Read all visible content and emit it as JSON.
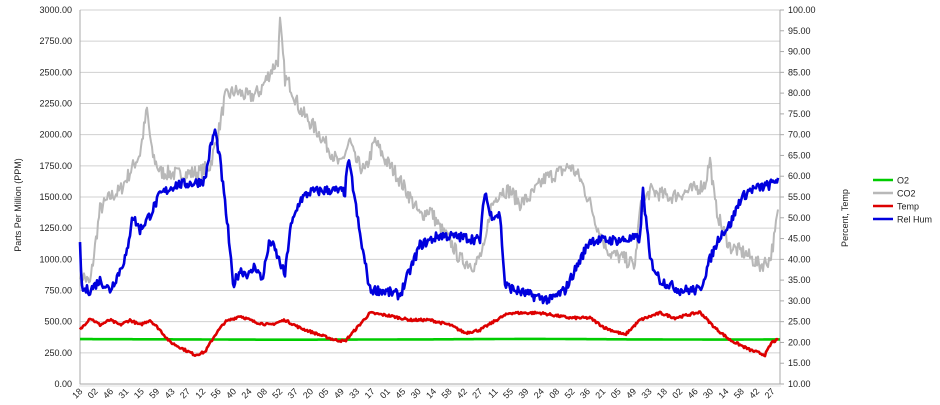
{
  "chart_data": {
    "type": "line",
    "title": "",
    "xlabel": "",
    "ylabel": "Parts Per Million (PPM)",
    "y2label": "Percent, Temp",
    "ylim": [
      0,
      3000
    ],
    "y2lim": [
      10,
      100
    ],
    "yticks": [
      "0.00",
      "250.00",
      "500.00",
      "750.00",
      "1000.00",
      "1250.00",
      "1500.00",
      "1750.00",
      "2000.00",
      "2250.00",
      "2500.00",
      "2750.00",
      "3000.00"
    ],
    "y2ticks": [
      "10.00",
      "15.00",
      "20.00",
      "25.00",
      "30.00",
      "35.00",
      "40.00",
      "45.00",
      "50.00",
      "55.00",
      "60.00",
      "65.00",
      "70.00",
      "75.00",
      "80.00",
      "85.00",
      "90.00",
      "95.00",
      "100.00"
    ],
    "xlim": [
      0,
      700
    ],
    "xticks": [
      "18",
      "02",
      "46",
      "31",
      "15",
      "59",
      "43",
      "27",
      "12",
      "56",
      "40",
      "24",
      "08",
      "52",
      "37",
      "20",
      "05",
      "49",
      "33",
      "17",
      "01",
      "45",
      "30",
      "14",
      "58",
      "42",
      "27",
      "11",
      "55",
      "39",
      "24",
      "08",
      "52",
      "36",
      "21",
      "05",
      "49",
      "33",
      "18",
      "02",
      "46",
      "30",
      "14",
      "58",
      "42",
      "27"
    ],
    "grid": true,
    "legend": "right",
    "series": [
      {
        "name": "O2",
        "axis": "left",
        "color": "#00cc00",
        "noise": 0,
        "points": [
          [
            0,
            360
          ],
          [
            100,
            358
          ],
          [
            200,
            355
          ],
          [
            350,
            358
          ],
          [
            450,
            362
          ],
          [
            550,
            358
          ],
          [
            650,
            356
          ],
          [
            700,
            358
          ]
        ]
      },
      {
        "name": "CO2",
        "axis": "left",
        "color": "#b8b8b8",
        "noise": 60,
        "points": [
          [
            0,
            900
          ],
          [
            10,
            800
          ],
          [
            15,
            1100
          ],
          [
            20,
            1400
          ],
          [
            30,
            1500
          ],
          [
            40,
            1550
          ],
          [
            50,
            1700
          ],
          [
            60,
            1850
          ],
          [
            67,
            2200
          ],
          [
            72,
            1850
          ],
          [
            80,
            1700
          ],
          [
            100,
            1680
          ],
          [
            120,
            1700
          ],
          [
            130,
            1750
          ],
          [
            138,
            2000
          ],
          [
            145,
            2300
          ],
          [
            155,
            2350
          ],
          [
            170,
            2300
          ],
          [
            180,
            2350
          ],
          [
            190,
            2500
          ],
          [
            198,
            2600
          ],
          [
            200,
            2900
          ],
          [
            205,
            2450
          ],
          [
            210,
            2400
          ],
          [
            220,
            2200
          ],
          [
            240,
            2000
          ],
          [
            260,
            1750
          ],
          [
            270,
            1950
          ],
          [
            275,
            1800
          ],
          [
            285,
            1700
          ],
          [
            295,
            1950
          ],
          [
            305,
            1800
          ],
          [
            315,
            1700
          ],
          [
            330,
            1500
          ],
          [
            340,
            1350
          ],
          [
            350,
            1400
          ],
          [
            360,
            1250
          ],
          [
            370,
            1150
          ],
          [
            380,
            1000
          ],
          [
            395,
            950
          ],
          [
            405,
            1100
          ],
          [
            410,
            1400
          ],
          [
            420,
            1550
          ],
          [
            430,
            1550
          ],
          [
            440,
            1450
          ],
          [
            450,
            1500
          ],
          [
            465,
            1650
          ],
          [
            480,
            1700
          ],
          [
            490,
            1750
          ],
          [
            500,
            1650
          ],
          [
            510,
            1450
          ],
          [
            520,
            1200
          ],
          [
            530,
            1050
          ],
          [
            545,
            1000
          ],
          [
            555,
            950
          ],
          [
            560,
            1400
          ],
          [
            570,
            1550
          ],
          [
            590,
            1500
          ],
          [
            610,
            1550
          ],
          [
            625,
            1600
          ],
          [
            630,
            1800
          ],
          [
            635,
            1450
          ],
          [
            640,
            1300
          ],
          [
            650,
            1100
          ],
          [
            665,
            1050
          ],
          [
            680,
            950
          ],
          [
            690,
            1000
          ],
          [
            695,
            1200
          ],
          [
            698,
            1400
          ]
        ]
      },
      {
        "name": "Temp",
        "axis": "right",
        "color": "#dd0000",
        "noise": 0.3,
        "points": [
          [
            0,
            23.0
          ],
          [
            10,
            25.9
          ],
          [
            20,
            24.2
          ],
          [
            30,
            25.4
          ],
          [
            40,
            24.2
          ],
          [
            50,
            25.4
          ],
          [
            60,
            24.2
          ],
          [
            70,
            25.4
          ],
          [
            80,
            23.0
          ],
          [
            90,
            20.1
          ],
          [
            105,
            18.2
          ],
          [
            115,
            17.0
          ],
          [
            125,
            17.7
          ],
          [
            135,
            21.8
          ],
          [
            145,
            24.9
          ],
          [
            160,
            26.4
          ],
          [
            175,
            24.9
          ],
          [
            190,
            24.2
          ],
          [
            205,
            25.4
          ],
          [
            220,
            23.5
          ],
          [
            240,
            21.8
          ],
          [
            255,
            20.6
          ],
          [
            265,
            20.3
          ],
          [
            275,
            23.0
          ],
          [
            290,
            27.1
          ],
          [
            310,
            26.4
          ],
          [
            330,
            25.4
          ],
          [
            350,
            25.4
          ],
          [
            370,
            24.2
          ],
          [
            385,
            22.3
          ],
          [
            400,
            23.0
          ],
          [
            420,
            25.9
          ],
          [
            430,
            27.1
          ],
          [
            460,
            27.1
          ],
          [
            490,
            25.9
          ],
          [
            510,
            25.9
          ],
          [
            525,
            23.5
          ],
          [
            545,
            21.8
          ],
          [
            560,
            25.4
          ],
          [
            580,
            27.1
          ],
          [
            595,
            25.9
          ],
          [
            620,
            27.3
          ],
          [
            635,
            23.5
          ],
          [
            650,
            20.6
          ],
          [
            670,
            18.2
          ],
          [
            685,
            17.0
          ],
          [
            692,
            20.1
          ],
          [
            698,
            20.6
          ]
        ]
      },
      {
        "name": "Rel Hum",
        "axis": "right",
        "color": "#0000dd",
        "noise": 1.2,
        "points": [
          [
            0,
            43.4
          ],
          [
            2,
            32.6
          ],
          [
            10,
            32.6
          ],
          [
            20,
            35.0
          ],
          [
            30,
            32.6
          ],
          [
            40,
            37.4
          ],
          [
            48,
            42.2
          ],
          [
            52,
            50.7
          ],
          [
            60,
            47.1
          ],
          [
            70,
            50.7
          ],
          [
            80,
            55.5
          ],
          [
            95,
            57.9
          ],
          [
            115,
            58.4
          ],
          [
            125,
            59.1
          ],
          [
            130,
            66.3
          ],
          [
            135,
            71.1
          ],
          [
            140,
            63.9
          ],
          [
            148,
            47.1
          ],
          [
            153,
            33.8
          ],
          [
            160,
            37.4
          ],
          [
            170,
            36.2
          ],
          [
            175,
            38.6
          ],
          [
            182,
            35.0
          ],
          [
            190,
            44.6
          ],
          [
            195,
            42.2
          ],
          [
            205,
            36.2
          ],
          [
            210,
            47.1
          ],
          [
            220,
            54.3
          ],
          [
            230,
            56.2
          ],
          [
            250,
            56.7
          ],
          [
            265,
            56.2
          ],
          [
            268,
            63.9
          ],
          [
            272,
            59.1
          ],
          [
            280,
            45.8
          ],
          [
            290,
            32.6
          ],
          [
            300,
            32.6
          ],
          [
            320,
            31.4
          ],
          [
            330,
            37.4
          ],
          [
            340,
            43.4
          ],
          [
            350,
            44.6
          ],
          [
            360,
            45.8
          ],
          [
            390,
            45.1
          ],
          [
            400,
            44.6
          ],
          [
            405,
            56.7
          ],
          [
            410,
            50.7
          ],
          [
            420,
            50.7
          ],
          [
            425,
            33.8
          ],
          [
            435,
            32.6
          ],
          [
            450,
            31.4
          ],
          [
            470,
            30.2
          ],
          [
            485,
            32.6
          ],
          [
            495,
            37.4
          ],
          [
            510,
            44.6
          ],
          [
            540,
            44.6
          ],
          [
            560,
            45.1
          ],
          [
            563,
            56.7
          ],
          [
            570,
            40.0
          ],
          [
            580,
            35.0
          ],
          [
            600,
            32.6
          ],
          [
            620,
            32.6
          ],
          [
            630,
            40.0
          ],
          [
            640,
            45.8
          ],
          [
            650,
            48.3
          ],
          [
            660,
            54.3
          ],
          [
            670,
            56.7
          ],
          [
            690,
            57.9
          ],
          [
            698,
            59.6
          ]
        ]
      }
    ]
  }
}
